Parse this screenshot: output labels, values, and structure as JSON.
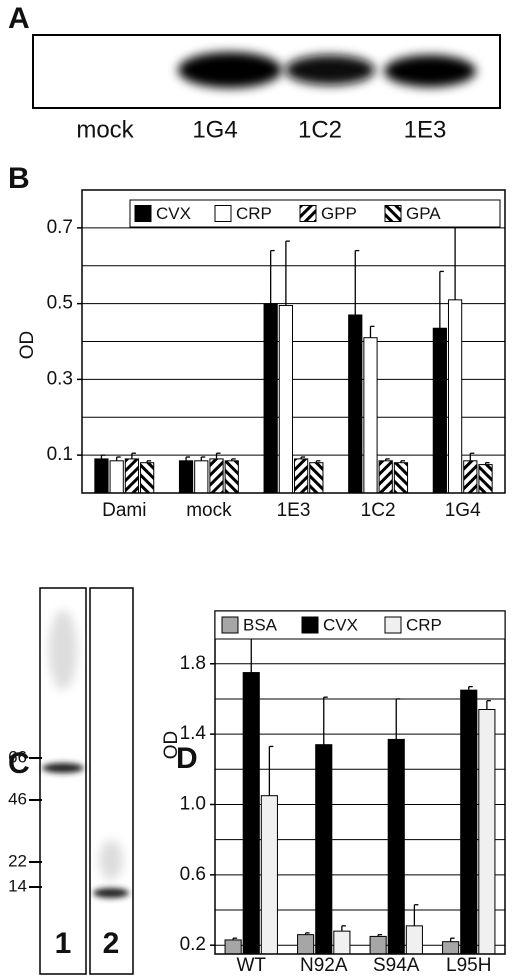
{
  "panel_a": {
    "label": "A",
    "lanes": [
      "mock",
      "1G4",
      "1C2",
      "1E3"
    ]
  },
  "panel_c": {
    "label": "C",
    "markers": [
      "66",
      "46",
      "22",
      "14"
    ],
    "lanes": [
      "1",
      "2"
    ]
  },
  "chart_data": [
    {
      "type": "bar",
      "label": "B",
      "y_label": "OD",
      "categories": [
        "Dami",
        "mock",
        "1E3",
        "1C2",
        "1G4"
      ],
      "series": [
        {
          "name": "CVX",
          "color": "#000000",
          "values": [
            0.09,
            0.085,
            0.5,
            0.47,
            0.435
          ],
          "errors": [
            0.01,
            0.01,
            0.14,
            0.17,
            0.15
          ]
        },
        {
          "name": "CRP",
          "color": "#ffffff",
          "values": [
            0.085,
            0.085,
            0.495,
            0.41,
            0.51
          ],
          "errors": [
            0.01,
            0.01,
            0.17,
            0.03,
            0.21
          ]
        },
        {
          "name": "GPP",
          "color": "#000000",
          "hatch": "/",
          "values": [
            0.09,
            0.09,
            0.09,
            0.085,
            0.085
          ],
          "errors": [
            0.015,
            0.015,
            0.005,
            0.005,
            0.02
          ]
        },
        {
          "name": "GPA",
          "color": "#000000",
          "hatch": "\\",
          "values": [
            0.08,
            0.085,
            0.08,
            0.08,
            0.075
          ],
          "errors": [
            0.005,
            0.005,
            0.005,
            0.005,
            0.005
          ]
        }
      ],
      "ylim": [
        0,
        0.8
      ],
      "yticks": [
        0.1,
        0.3,
        0.5,
        0.7
      ],
      "minor_yticks": [
        0.2,
        0.4,
        0.6,
        0.8
      ],
      "grid": true
    },
    {
      "type": "bar",
      "label": "D",
      "y_label": "OD",
      "categories": [
        "WT",
        "N92A",
        "S94A",
        "L95H"
      ],
      "series": [
        {
          "name": "BSA",
          "color": "#a6a6a6",
          "values": [
            0.23,
            0.26,
            0.25,
            0.22
          ],
          "errors": [
            0.01,
            0.01,
            0.01,
            0.02
          ]
        },
        {
          "name": "CVX",
          "color": "#000000",
          "values": [
            1.75,
            1.34,
            1.37,
            1.65
          ],
          "errors": [
            0.2,
            0.27,
            0.23,
            0.02
          ]
        },
        {
          "name": "CRP",
          "color": "#f0f0f0",
          "values": [
            1.05,
            0.28,
            0.31,
            1.54
          ],
          "errors": [
            0.28,
            0.03,
            0.12,
            0.05
          ]
        }
      ],
      "ylim": [
        0.15,
        2.1
      ],
      "yticks": [
        0.2,
        0.6,
        {
          "value": 1,
          "label": "1.0"
        },
        1.4,
        1.8
      ],
      "minor_yticks": [
        0.4,
        0.8,
        1.2,
        1.6,
        2.0
      ],
      "grid": true
    }
  ]
}
